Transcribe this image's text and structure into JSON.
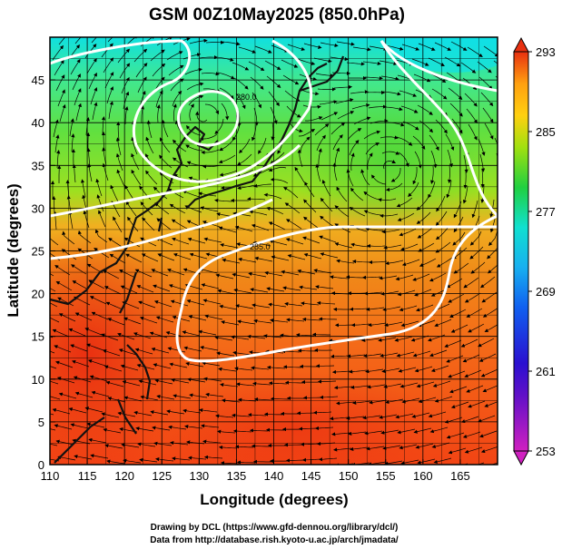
{
  "title": "GSM 00Z10May2025 (850.0hPa)",
  "xlabel": "Longitude (degrees)",
  "ylabel": "Latitude  (degrees)",
  "credits": {
    "line1": "Drawing by DCL (https://www.gfd-dennou.org/library/dcl/)",
    "line2": "Data from http://database.rish.kyoto-u.ac.jp/arch/jmadata/"
  },
  "chart_data": {
    "type": "heatmap",
    "xlim": [
      110,
      170
    ],
    "ylim": [
      0,
      50
    ],
    "xticks": [
      110,
      115,
      120,
      125,
      130,
      135,
      140,
      145,
      150,
      155,
      160,
      165
    ],
    "yticks": [
      0,
      5,
      10,
      15,
      20,
      25,
      30,
      35,
      40,
      45
    ],
    "grid": true,
    "colorbar": {
      "range": [
        253,
        293
      ],
      "ticks": [
        253,
        261,
        269,
        277,
        285,
        293
      ],
      "position": "right",
      "colors": [
        "#d020c0",
        "#2a10d0",
        "#1890f0",
        "#10e0d0",
        "#20d040",
        "#a0e010",
        "#ffa010",
        "#e83010"
      ]
    },
    "contour_labels": [
      "280.0",
      "285.0"
    ],
    "features": [
      "streamlines",
      "temperature contours",
      "coastlines"
    ]
  }
}
